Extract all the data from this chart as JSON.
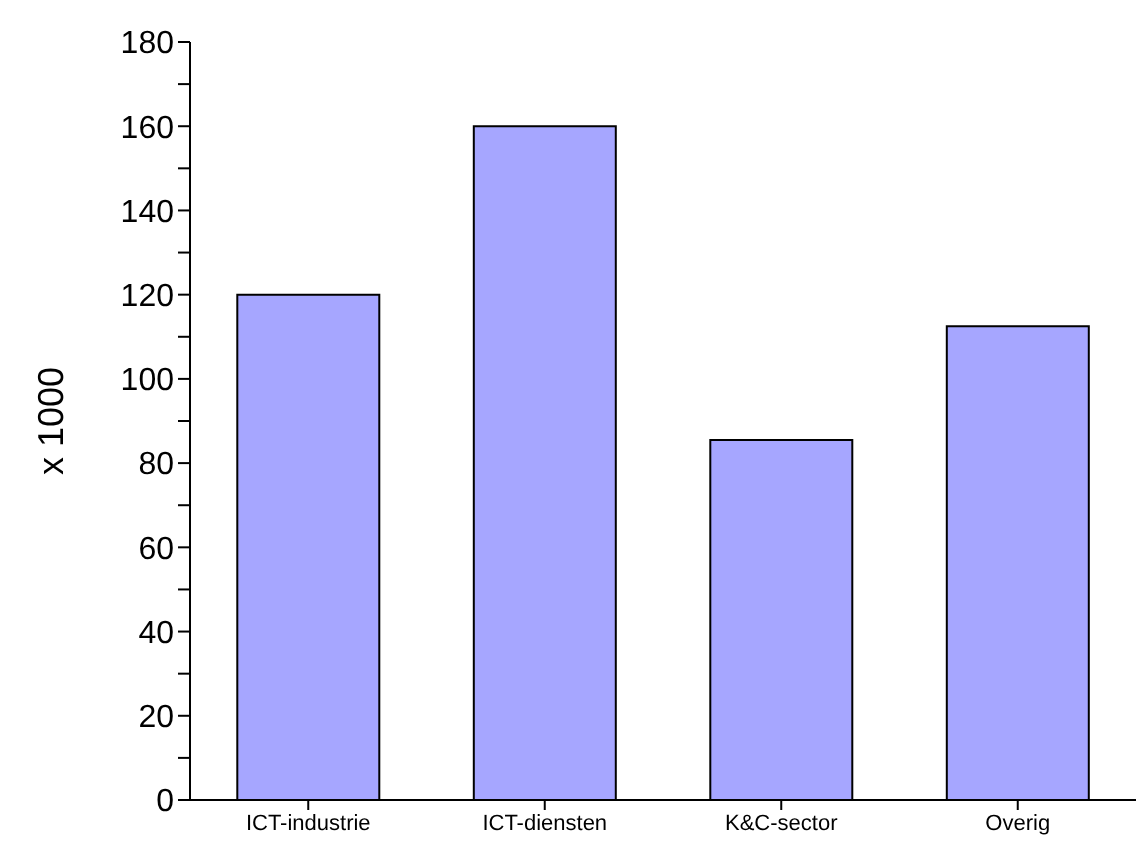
{
  "chart_data": {
    "type": "bar",
    "ylabel": "x 1000",
    "categories": [
      "ICT-industrie",
      "ICT-diensten",
      "K&C-sector",
      "Overig"
    ],
    "values": [
      120,
      160,
      85.5,
      112.5
    ],
    "color": "#a6a6ff",
    "ylim": [
      0,
      180
    ],
    "yticks": [
      0,
      {
        "value": 10,
        "label": null
      },
      20,
      {
        "value": 30,
        "label": null
      },
      40,
      {
        "value": 50,
        "label": null
      },
      60,
      {
        "value": 70,
        "label": null
      },
      80,
      {
        "value": 90,
        "label": null
      },
      100,
      {
        "value": 110,
        "label": null
      },
      120,
      {
        "value": 130,
        "label": null
      },
      140,
      {
        "value": 150,
        "label": null
      },
      160,
      {
        "value": 170,
        "label": null
      },
      180
    ],
    "grid": false,
    "legend": false
  }
}
